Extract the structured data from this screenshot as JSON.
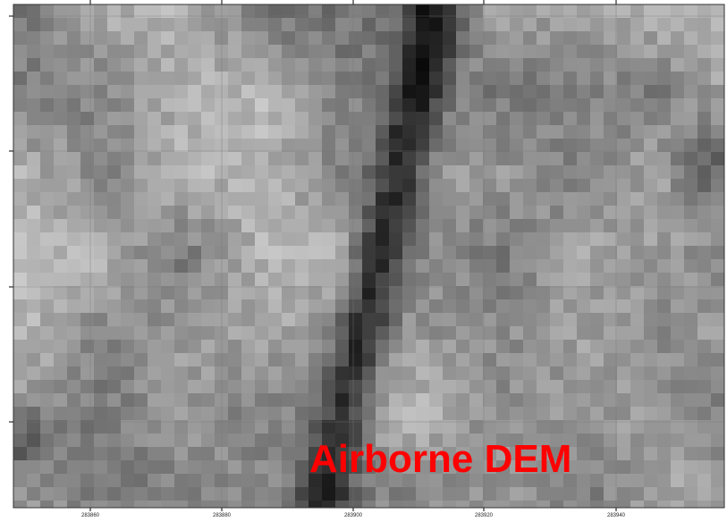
{
  "title": "Airborne DEM",
  "x_axis": {
    "labels": [
      "283860",
      "283880",
      "283900",
      "283920",
      "283940"
    ]
  }
}
